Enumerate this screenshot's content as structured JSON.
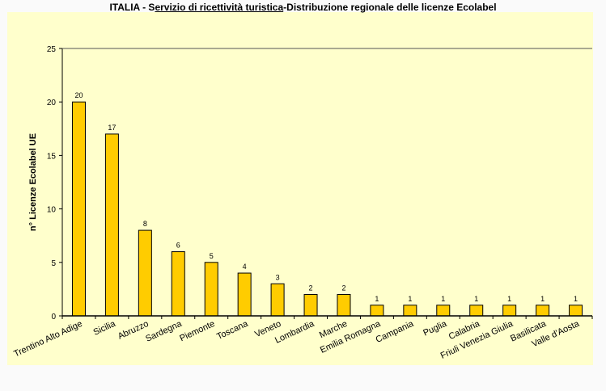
{
  "chart_data": {
    "type": "bar",
    "title_parts": [
      "ITALIA - S",
      "ervizio di ricettività turistica",
      "-Distribuzione regionale delle licenze Ecolabel"
    ],
    "xlabel": "",
    "ylabel": "n° Licenze  Ecolabel  UE",
    "ylim": [
      0,
      25
    ],
    "yticks": [
      0,
      5,
      10,
      15,
      20,
      25
    ],
    "grid": false,
    "categories": [
      "Trentino Alto Adige",
      "Sicilia",
      "Abruzzo",
      "Sardegna",
      "Piemonte",
      "Toscana",
      "Veneto",
      "Lombardia",
      "Marche",
      "Emilia Romagna",
      "Campania",
      "Puglia",
      "Calabria",
      "Friuli Venezia Giulia",
      "Basilicata",
      "Valle d'Aosta"
    ],
    "values": [
      20,
      17,
      8,
      6,
      5,
      4,
      3,
      2,
      2,
      1,
      1,
      1,
      1,
      1,
      1,
      1
    ],
    "data_labels": true,
    "bar_color": "#ffcc00",
    "background_color": "#ffffcc"
  }
}
